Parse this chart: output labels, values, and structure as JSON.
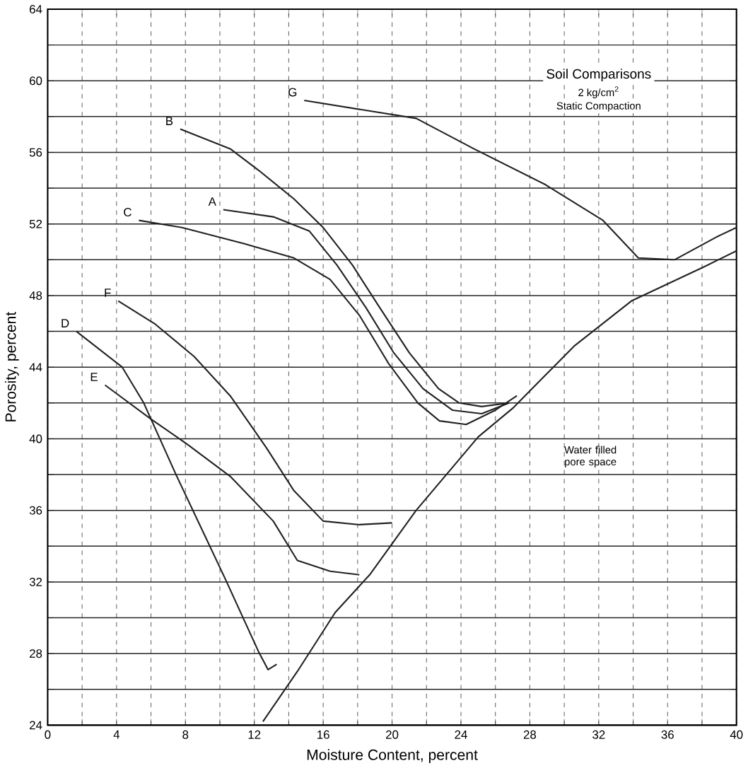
{
  "chart_data": {
    "type": "line",
    "title": "Soil Comparisons",
    "xlabel": "Moisture Content, percent",
    "ylabel": "Porosity, percent",
    "xlim": [
      0,
      40
    ],
    "ylim": [
      24,
      64
    ],
    "xticks": [
      0,
      {
        "value": 2,
        "label": null
      },
      4,
      {
        "value": 6,
        "label": null
      },
      8,
      {
        "value": 10,
        "label": null
      },
      12,
      {
        "value": 14,
        "label": null
      },
      16,
      {
        "value": 18,
        "label": null
      },
      20,
      {
        "value": 22,
        "label": null
      },
      24,
      {
        "value": 26,
        "label": null
      },
      28,
      {
        "value": 30,
        "label": null
      },
      32,
      {
        "value": 34,
        "label": null
      },
      36,
      {
        "value": 38,
        "label": null
      },
      40
    ],
    "yticks": [
      24,
      {
        "value": 26,
        "label": null
      },
      28,
      {
        "value": 30,
        "label": null
      },
      32,
      {
        "value": 34,
        "label": null
      },
      36,
      {
        "value": 38,
        "label": null
      },
      40,
      {
        "value": 42,
        "label": null
      },
      44,
      {
        "value": 46,
        "label": null
      },
      48,
      {
        "value": 50,
        "label": null
      },
      52,
      {
        "value": 54,
        "label": null
      },
      56,
      {
        "value": 58,
        "label": null
      },
      60,
      {
        "value": 62,
        "label": null
      },
      64
    ],
    "grid": true,
    "legend": false,
    "annotations": [
      "2 kg/cm$^{2}$",
      "Static Compaction",
      "Water filled pore space"
    ],
    "series": [
      {
        "name": "G",
        "color": "#222222",
        "x": [
          14.9,
          21.4,
          24.75,
          28.9,
          32.25,
          34.3,
          36.4,
          38.9,
          40
        ],
        "values": [
          58.9,
          57.9,
          56.2,
          54.2,
          52.2,
          50.1,
          50.0,
          51.3,
          51.8
        ]
      },
      {
        "name": "B",
        "color": "#222222",
        "x": [
          7.7,
          10.6,
          12.25,
          14.3,
          16.0,
          17.7,
          19.3,
          21.0,
          22.7,
          23.9,
          25.2,
          26.8
        ],
        "values": [
          57.3,
          56.2,
          55.0,
          53.4,
          51.8,
          49.7,
          47.3,
          44.8,
          42.8,
          42.0,
          41.8,
          42.0
        ]
      },
      {
        "name": "A",
        "color": "#222222",
        "x": [
          10.2,
          13.1,
          15.2,
          16.8,
          18.5,
          20.1,
          21.8,
          23.5,
          25.2,
          26.8
        ],
        "values": [
          52.8,
          52.4,
          51.6,
          49.7,
          47.3,
          44.8,
          42.8,
          41.6,
          41.4,
          42.0
        ]
      },
      {
        "name": "C",
        "color": "#222222",
        "x": [
          5.3,
          7.8,
          11.4,
          14.3,
          16.4,
          18.1,
          19.8,
          21.5,
          22.75,
          24.3,
          26.0,
          27.25
        ],
        "values": [
          52.2,
          51.8,
          50.9,
          50.1,
          48.9,
          46.9,
          44.2,
          42.0,
          41.0,
          40.8,
          41.6,
          42.4
        ]
      },
      {
        "name": "F",
        "color": "#222222",
        "x": [
          4.1,
          6.25,
          8.5,
          10.6,
          12.7,
          14.3,
          16.0,
          18.1,
          20.0
        ],
        "values": [
          47.7,
          46.4,
          44.6,
          42.4,
          39.5,
          37.1,
          35.4,
          35.2,
          35.3
        ]
      },
      {
        "name": "D",
        "color": "#222222",
        "x": [
          1.67,
          4.33,
          5.58,
          7.5,
          10.3,
          12.25,
          12.8,
          13.3
        ],
        "values": [
          46.0,
          44.0,
          42.0,
          37.9,
          32.2,
          28.1,
          27.1,
          27.4
        ]
      },
      {
        "name": "E",
        "color": "#222222",
        "x": [
          3.33,
          6.0,
          8.1,
          10.6,
          13.1,
          14.5,
          16.4,
          18.1
        ],
        "values": [
          43.0,
          41.1,
          39.7,
          37.9,
          35.4,
          33.2,
          32.6,
          32.4
        ]
      },
      {
        "color": "#222222",
        "x": [
          12.5,
          14.5,
          16.7,
          18.7,
          21.4,
          25.0,
          27.0,
          30.6,
          33.9,
          38.1,
          40.0
        ],
        "values": [
          24.2,
          27.0,
          30.3,
          32.4,
          36.0,
          40.1,
          41.7,
          45.2,
          47.7,
          49.6,
          50.5
        ]
      }
    ]
  }
}
